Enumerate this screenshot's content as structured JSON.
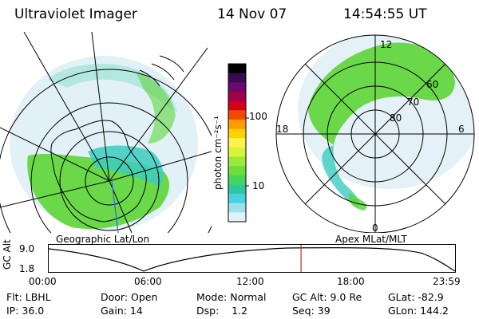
{
  "header": {
    "instrument": "Ultraviolet Imager",
    "date": "14 Nov 07",
    "time": "14:54:55 UT"
  },
  "colorbar": {
    "unit": "photon cm⁻²s⁻¹",
    "ticks": [
      "100",
      "10"
    ],
    "colors": [
      "#000000",
      "#3a0b55",
      "#6a0a6a",
      "#a0004a",
      "#d4001c",
      "#f04a00",
      "#ff9a00",
      "#ffd200",
      "#fff24a",
      "#d8f43a",
      "#9ee83a",
      "#6ede3a",
      "#44d65a",
      "#2ec8a0",
      "#4ad2dc",
      "#9ce0ee",
      "#dff2f8"
    ]
  },
  "maps": {
    "left_label": "Geographic Lat/Lon",
    "right_label": "Apex MLat/MLT",
    "mlat_labels": [
      "60",
      "70",
      "80"
    ],
    "mlt_labels": [
      "12",
      "18",
      "6",
      "0"
    ]
  },
  "altitude_plot": {
    "ylabel": "GC Alt",
    "yticks": [
      "9.0",
      "1.8"
    ],
    "xticks": [
      "00:00",
      "06:00",
      "12:00",
      "18:00",
      "23:59"
    ],
    "current_time_fraction": 0.621
  },
  "info": {
    "row1": [
      "Flt: LBHL",
      "Door: Open",
      "Mode: Normal",
      "GC Alt: 9.0 Re",
      "GLat: -82.9"
    ],
    "row2": [
      "IP: 36.0",
      "Gain: 14",
      "Dsp:    1.2",
      "Seq: 39",
      "GLon: 144.2"
    ]
  },
  "colors": {
    "aurora_green": "#5fd63a",
    "aurora_teal": "#3ccdc0",
    "aurora_pale": "#cfe9f2",
    "marker": "#d62020"
  }
}
